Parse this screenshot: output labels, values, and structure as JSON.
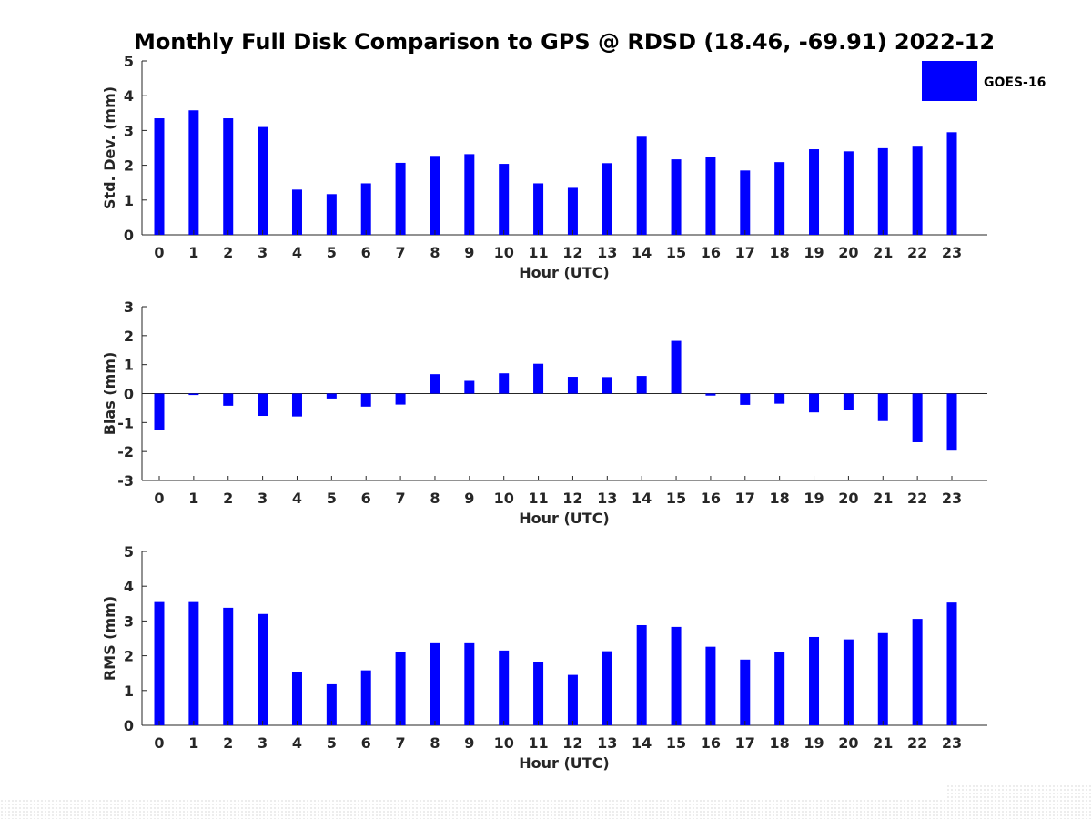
{
  "figure": {
    "title": "Monthly Full Disk Comparison to GPS @ RDSD (18.46, -69.91) 2022-12",
    "legend": {
      "label": "GOES-16",
      "color": "#0000ff",
      "placement": "top-right"
    },
    "bar_color": "#0000ff"
  },
  "chart_data": [
    {
      "type": "bar",
      "title": "Monthly Full Disk Comparison to GPS @ RDSD (18.46, -69.91) 2022-12",
      "xlabel": "Hour (UTC)",
      "ylabel": "Std. Dev. (mm)",
      "categories": [
        "0",
        "1",
        "2",
        "3",
        "4",
        "5",
        "6",
        "7",
        "8",
        "9",
        "10",
        "11",
        "12",
        "13",
        "14",
        "15",
        "16",
        "17",
        "18",
        "19",
        "20",
        "21",
        "22",
        "23"
      ],
      "yticks": [
        "0",
        "1",
        "2",
        "3",
        "4",
        "5"
      ],
      "ylim": [
        0,
        5
      ],
      "grid": false,
      "series": [
        {
          "name": "GOES-16",
          "values": [
            3.35,
            3.58,
            3.35,
            3.1,
            1.3,
            1.17,
            1.48,
            2.07,
            2.27,
            2.32,
            2.04,
            1.48,
            1.35,
            2.06,
            2.82,
            2.17,
            2.24,
            1.85,
            2.09,
            2.46,
            2.4,
            2.49,
            2.56,
            2.95
          ]
        }
      ]
    },
    {
      "type": "bar",
      "xlabel": "Hour (UTC)",
      "ylabel": "Bias (mm)",
      "categories": [
        "0",
        "1",
        "2",
        "3",
        "4",
        "5",
        "6",
        "7",
        "8",
        "9",
        "10",
        "11",
        "12",
        "13",
        "14",
        "15",
        "16",
        "17",
        "18",
        "19",
        "20",
        "21",
        "22",
        "23"
      ],
      "yticks": [
        "-3",
        "-2",
        "-1",
        "0",
        "1",
        "2",
        "3"
      ],
      "ylim": [
        -3,
        3
      ],
      "grid": false,
      "zero_line": true,
      "series": [
        {
          "name": "GOES-16",
          "values": [
            -1.27,
            -0.05,
            -0.42,
            -0.77,
            -0.79,
            -0.17,
            -0.45,
            -0.38,
            0.67,
            0.44,
            0.7,
            1.03,
            0.58,
            0.57,
            0.61,
            1.82,
            -0.07,
            -0.39,
            -0.35,
            -0.65,
            -0.58,
            -0.95,
            -1.68,
            -1.97
          ]
        }
      ]
    },
    {
      "type": "bar",
      "xlabel": "Hour (UTC)",
      "ylabel": "RMS (mm)",
      "categories": [
        "0",
        "1",
        "2",
        "3",
        "4",
        "5",
        "6",
        "7",
        "8",
        "9",
        "10",
        "11",
        "12",
        "13",
        "14",
        "15",
        "16",
        "17",
        "18",
        "19",
        "20",
        "21",
        "22",
        "23"
      ],
      "yticks": [
        "0",
        "1",
        "2",
        "3",
        "4",
        "5"
      ],
      "ylim": [
        0,
        5
      ],
      "grid": false,
      "series": [
        {
          "name": "GOES-16",
          "values": [
            3.57,
            3.57,
            3.38,
            3.2,
            1.53,
            1.18,
            1.58,
            2.1,
            2.36,
            2.36,
            2.15,
            1.82,
            1.45,
            2.13,
            2.88,
            2.83,
            2.26,
            1.89,
            2.12,
            2.54,
            2.47,
            2.65,
            3.06,
            3.53
          ]
        }
      ]
    }
  ]
}
